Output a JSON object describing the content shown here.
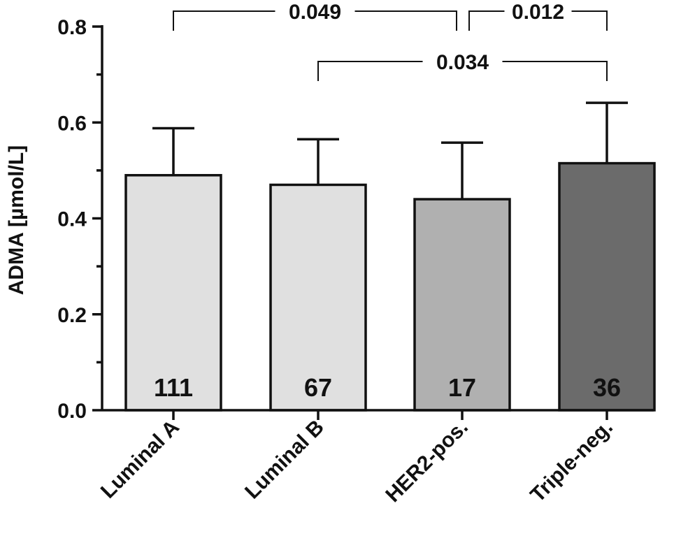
{
  "chart_data": {
    "type": "bar",
    "title": "",
    "xlabel": "",
    "ylabel": "ADMA [µmol/L]",
    "ylim": [
      0,
      0.8
    ],
    "yticks": [
      "0.0",
      "0.2",
      "0.4",
      "0.6",
      "0.8"
    ],
    "categories": [
      "Luminal A",
      "Luminal B",
      "HER2-pos.",
      "Triple-neg."
    ],
    "values": [
      0.49,
      0.47,
      0.44,
      0.515
    ],
    "error_upper": [
      0.588,
      0.565,
      0.558,
      0.641
    ],
    "n_labels": [
      "111",
      "67",
      "17",
      "36"
    ],
    "bar_colors": [
      "#e0e0e0",
      "#e0e0e0",
      "#b0b0b0",
      "#6b6b6b"
    ],
    "comparisons": [
      {
        "from": "Luminal A",
        "to": "HER2-pos.",
        "p": "0.049"
      },
      {
        "from": "HER2-pos.",
        "to": "Triple-neg.",
        "p": "0.012"
      },
      {
        "from": "Luminal B",
        "to": "Triple-neg.",
        "p": "0.034"
      }
    ]
  }
}
